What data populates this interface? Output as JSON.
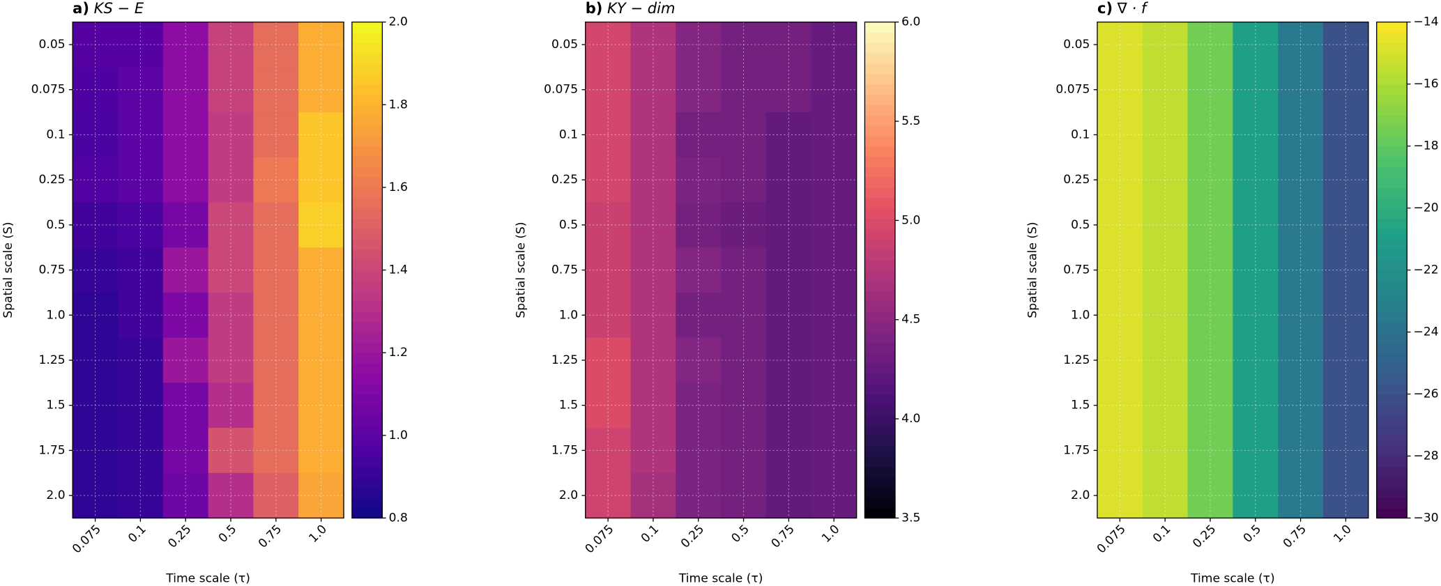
{
  "chart_data": [
    {
      "type": "heatmap",
      "panel_label": "a)",
      "title": "KS − E",
      "x_label": "Time scale (τ)",
      "y_label": "Spatial scale (S)",
      "x_categories": [
        "0.075",
        "0.1",
        "0.25",
        "0.5",
        "0.75",
        "1.0"
      ],
      "y_categories": [
        "0.05",
        "0.075",
        "0.1",
        "0.25",
        "0.5",
        "0.75",
        "1.0",
        "1.25",
        "1.5",
        "1.75",
        "2.0"
      ],
      "values": [
        [
          0.98,
          0.98,
          1.15,
          1.38,
          1.55,
          1.78
        ],
        [
          0.96,
          1.0,
          1.15,
          1.38,
          1.55,
          1.78
        ],
        [
          0.95,
          1.0,
          1.15,
          1.35,
          1.55,
          1.85
        ],
        [
          0.97,
          1.0,
          1.15,
          1.35,
          1.6,
          1.85
        ],
        [
          0.93,
          0.95,
          1.08,
          1.4,
          1.55,
          1.88
        ],
        [
          0.9,
          0.93,
          1.2,
          1.4,
          1.55,
          1.78
        ],
        [
          0.88,
          0.93,
          1.1,
          1.35,
          1.55,
          1.78
        ],
        [
          0.88,
          0.9,
          1.2,
          1.35,
          1.55,
          1.78
        ],
        [
          0.88,
          0.9,
          1.08,
          1.3,
          1.55,
          1.78
        ],
        [
          0.88,
          0.9,
          1.08,
          1.45,
          1.55,
          1.78
        ],
        [
          0.88,
          0.9,
          1.05,
          1.3,
          1.5,
          1.75
        ]
      ],
      "colormap": "plasma",
      "clim": [
        0.8,
        2.0
      ],
      "cticks": [
        0.8,
        {
          "value": 1,
          "label": "1.0"
        },
        1.2,
        1.4,
        1.6,
        1.8,
        {
          "value": 2,
          "label": "2.0"
        }
      ],
      "grid": true
    },
    {
      "type": "heatmap",
      "panel_label": "b)",
      "title": "KY − dim",
      "x_label": "Time scale (τ)",
      "y_label": "Spatial scale (S)",
      "x_categories": [
        "0.075",
        "0.1",
        "0.25",
        "0.5",
        "0.75",
        "1.0"
      ],
      "y_categories": [
        "0.05",
        "0.075",
        "0.1",
        "0.25",
        "0.5",
        "0.75",
        "1.0",
        "1.25",
        "1.5",
        "1.75",
        "2.0"
      ],
      "values": [
        [
          4.95,
          4.72,
          4.45,
          4.35,
          4.35,
          4.28
        ],
        [
          4.95,
          4.72,
          4.45,
          4.35,
          4.35,
          4.28
        ],
        [
          4.95,
          4.72,
          4.35,
          4.35,
          4.25,
          4.28
        ],
        [
          4.95,
          4.72,
          4.4,
          4.35,
          4.25,
          4.28
        ],
        [
          4.88,
          4.72,
          4.35,
          4.3,
          4.25,
          4.28
        ],
        [
          4.88,
          4.72,
          4.45,
          4.35,
          4.25,
          4.28
        ],
        [
          4.88,
          4.72,
          4.35,
          4.35,
          4.25,
          4.28
        ],
        [
          5.0,
          4.72,
          4.45,
          4.35,
          4.25,
          4.28
        ],
        [
          5.0,
          4.72,
          4.4,
          4.35,
          4.25,
          4.28
        ],
        [
          4.92,
          4.72,
          4.4,
          4.35,
          4.25,
          4.28
        ],
        [
          4.92,
          4.65,
          4.4,
          4.35,
          4.25,
          4.28
        ]
      ],
      "colormap": "magma",
      "clim": [
        3.5,
        6.0
      ],
      "cticks": [
        3.5,
        {
          "value": 4,
          "label": "4.0"
        },
        4.5,
        {
          "value": 5,
          "label": "5.0"
        },
        5.5,
        {
          "value": 6,
          "label": "6.0"
        }
      ],
      "grid": true
    },
    {
      "type": "heatmap",
      "panel_label": "c)",
      "title": "∇ · f",
      "x_label": "Time scale (τ)",
      "y_label": "Spatial scale (S)",
      "x_categories": [
        "0.075",
        "0.1",
        "0.25",
        "0.5",
        "0.75",
        "1.0"
      ],
      "y_categories": [
        "0.05",
        "0.075",
        "0.1",
        "0.25",
        "0.5",
        "0.75",
        "1.0",
        "1.25",
        "1.5",
        "1.75",
        "2.0"
      ],
      "values": [
        [
          -14.8,
          -15.5,
          -17.5,
          -21,
          -23.5,
          -26
        ],
        [
          -14.8,
          -15.5,
          -17.5,
          -21,
          -23.5,
          -26
        ],
        [
          -14.8,
          -15.5,
          -17.5,
          -21,
          -23.5,
          -26
        ],
        [
          -14.8,
          -15.5,
          -17.5,
          -21,
          -23.5,
          -26
        ],
        [
          -14.8,
          -15.5,
          -17.5,
          -21,
          -23.5,
          -26
        ],
        [
          -14.8,
          -15.5,
          -17.5,
          -21,
          -23.5,
          -26
        ],
        [
          -14.8,
          -15.5,
          -17.5,
          -21,
          -23.5,
          -26
        ],
        [
          -14.8,
          -15.5,
          -17.5,
          -21,
          -23.5,
          -26
        ],
        [
          -14.8,
          -15.5,
          -17.5,
          -21,
          -23.5,
          -26
        ],
        [
          -14.8,
          -15.5,
          -17.5,
          -21,
          -23.5,
          -26
        ],
        [
          -14.8,
          -15.5,
          -17.5,
          -21,
          -23.5,
          -26
        ]
      ],
      "colormap": "viridis",
      "clim": [
        -30,
        -14
      ],
      "cticks": [
        {
          "value": -30,
          "label": "−30"
        },
        {
          "value": -28,
          "label": "−28"
        },
        {
          "value": -26,
          "label": "−26"
        },
        {
          "value": -24,
          "label": "−24"
        },
        {
          "value": -22,
          "label": "−22"
        },
        {
          "value": -20,
          "label": "−20"
        },
        {
          "value": -18,
          "label": "−18"
        },
        {
          "value": -16,
          "label": "−16"
        },
        {
          "value": -14,
          "label": "−14"
        }
      ],
      "grid": true
    }
  ]
}
